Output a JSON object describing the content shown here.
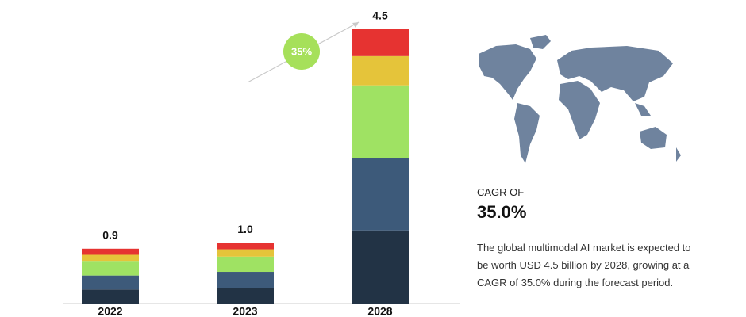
{
  "chart_data": {
    "type": "stacked_bar",
    "categories": [
      "2022",
      "2023",
      "2028"
    ],
    "series": [
      {
        "color": "#223345",
        "values": [
          0.23,
          0.26,
          1.2
        ]
      },
      {
        "color": "#3d5a7a",
        "values": [
          0.23,
          0.26,
          1.18
        ]
      },
      {
        "color": "#9fe263",
        "values": [
          0.24,
          0.25,
          1.2
        ]
      },
      {
        "color": "#e5c43a",
        "values": [
          0.1,
          0.12,
          0.48
        ]
      },
      {
        "color": "#e63331",
        "values": [
          0.1,
          0.11,
          0.44
        ]
      }
    ],
    "totals": [
      0.9,
      1.0,
      4.5
    ],
    "total_labels": [
      "0.9",
      "1.0",
      "4.5"
    ],
    "annotation": "35%"
  },
  "side": {
    "cagr_label": "CAGR OF",
    "cagr_value": "35.0%",
    "description": "The global multimodal AI market is expected to be worth USD 4.5 billion by 2028, growing at a CAGR of 35.0% during the forecast period."
  }
}
